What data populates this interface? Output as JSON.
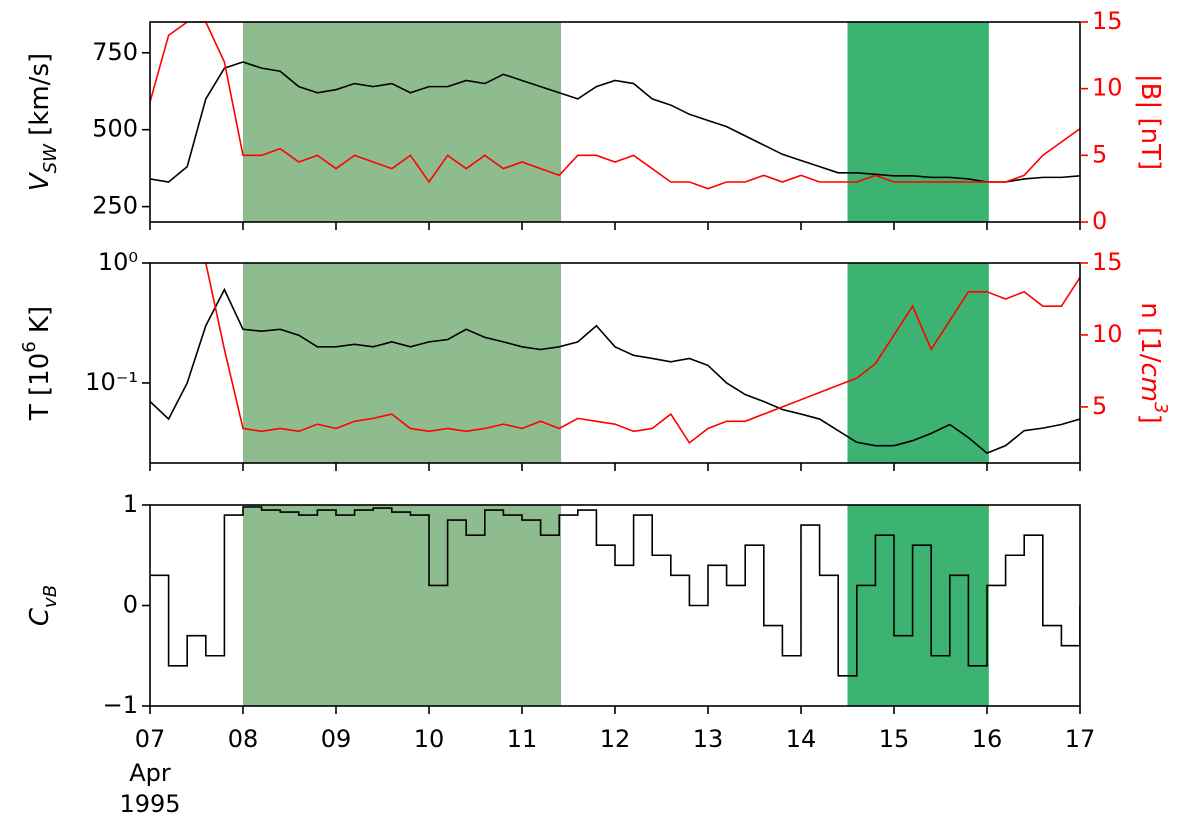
{
  "highlights": [
    {
      "start": 8,
      "end": 11.42,
      "color": "#8fbc8f"
    },
    {
      "start": 14.5,
      "end": 16.02,
      "color": "#3cb371"
    }
  ],
  "chart_data": [
    {
      "type": "line",
      "ylabel": [
        {
          "text": "V",
          "italic": true
        },
        {
          "text": "SW",
          "sub": true,
          "italic": true
        },
        {
          "text": " [km/s]"
        }
      ],
      "y2label": [
        {
          "text": "|B| [nT]"
        }
      ],
      "xlim": [
        7,
        17
      ],
      "ylim": [
        200,
        850
      ],
      "yticks": [
        250,
        500,
        750
      ],
      "y2lim": [
        0,
        15
      ],
      "y2ticks": [
        0,
        5,
        10,
        15
      ],
      "x": [
        7,
        7.2,
        7.4,
        7.6,
        7.8,
        8,
        8.2,
        8.4,
        8.6,
        8.8,
        9,
        9.2,
        9.4,
        9.6,
        9.8,
        10,
        10.2,
        10.4,
        10.6,
        10.8,
        11,
        11.2,
        11.4,
        11.6,
        11.8,
        12,
        12.2,
        12.4,
        12.6,
        12.8,
        13,
        13.2,
        13.4,
        13.6,
        13.8,
        14,
        14.2,
        14.4,
        14.6,
        14.8,
        15,
        15.2,
        15.4,
        15.6,
        15.8,
        16,
        16.2,
        16.4,
        16.6,
        16.8,
        17
      ],
      "series": [
        {
          "name": "V_SW",
          "color": "#000000",
          "values": [
            340,
            330,
            380,
            600,
            700,
            720,
            700,
            690,
            640,
            620,
            630,
            650,
            640,
            650,
            620,
            640,
            640,
            660,
            650,
            680,
            660,
            640,
            620,
            600,
            640,
            660,
            650,
            600,
            580,
            550,
            530,
            510,
            480,
            450,
            420,
            400,
            380,
            360,
            360,
            355,
            350,
            350,
            345,
            345,
            340,
            330,
            330,
            340,
            345,
            345,
            350
          ]
        },
        {
          "name": "|B|",
          "color": "#ff0000",
          "axis": "y2",
          "values": [
            9,
            14,
            15,
            15,
            12,
            5,
            5,
            5.5,
            4.5,
            5,
            4,
            5,
            4.5,
            4,
            5,
            3,
            5,
            4,
            5,
            4,
            4.5,
            4,
            3.5,
            5,
            5,
            4.5,
            5,
            4,
            3,
            3,
            2.5,
            3,
            3,
            3.5,
            3,
            3.5,
            3,
            3,
            3,
            3.5,
            3,
            3,
            3,
            3,
            3,
            3,
            3,
            3.5,
            5,
            6,
            7
          ]
        }
      ]
    },
    {
      "type": "line",
      "ylabel": [
        {
          "text": "T [10"
        },
        {
          "text": "6",
          "sup": true
        },
        {
          "text": " K]"
        }
      ],
      "y2label": [
        {
          "text": "n [1/"
        },
        {
          "text": "cm",
          "italic": true
        },
        {
          "text": "3",
          "sup": true,
          "italic": true
        },
        {
          "text": "]"
        }
      ],
      "xlim": [
        7,
        17
      ],
      "ylim": [
        0.0215,
        1
      ],
      "yscale": "log",
      "yticks": [
        {
          "value": 0.1,
          "label": "10⁻¹"
        },
        {
          "value": 1,
          "label": "10⁰"
        }
      ],
      "y2lim": [
        1.1,
        15
      ],
      "y2ticks": [
        5,
        10,
        15
      ],
      "x": [
        7,
        7.2,
        7.4,
        7.6,
        7.8,
        8,
        8.2,
        8.4,
        8.6,
        8.8,
        9,
        9.2,
        9.4,
        9.6,
        9.8,
        10,
        10.2,
        10.4,
        10.6,
        10.8,
        11,
        11.2,
        11.4,
        11.6,
        11.8,
        12,
        12.2,
        12.4,
        12.6,
        12.8,
        13,
        13.2,
        13.4,
        13.6,
        13.8,
        14,
        14.2,
        14.4,
        14.6,
        14.8,
        15,
        15.2,
        15.4,
        15.6,
        15.8,
        16,
        16.2,
        16.4,
        16.6,
        16.8,
        17
      ],
      "series": [
        {
          "name": "T",
          "color": "#000000",
          "values": [
            0.07,
            0.05,
            0.1,
            0.3,
            0.6,
            0.28,
            0.27,
            0.28,
            0.25,
            0.2,
            0.2,
            0.21,
            0.2,
            0.22,
            0.2,
            0.22,
            0.23,
            0.28,
            0.24,
            0.22,
            0.2,
            0.19,
            0.2,
            0.22,
            0.3,
            0.2,
            0.17,
            0.16,
            0.15,
            0.16,
            0.14,
            0.1,
            0.08,
            0.07,
            0.06,
            0.055,
            0.05,
            0.04,
            0.032,
            0.03,
            0.03,
            0.033,
            0.038,
            0.045,
            0.035,
            0.026,
            0.03,
            0.04,
            0.042,
            0.045,
            0.05
          ]
        },
        {
          "name": "n",
          "color": "#ff0000",
          "axis": "y2",
          "values": [
            null,
            null,
            null,
            15,
            9,
            3.5,
            3.3,
            3.5,
            3.3,
            3.8,
            3.5,
            4,
            4.2,
            4.5,
            3.5,
            3.3,
            3.5,
            3.3,
            3.5,
            3.8,
            3.5,
            4,
            3.5,
            4.2,
            4,
            3.8,
            3.3,
            3.5,
            4.5,
            2.5,
            3.5,
            4,
            4,
            4.5,
            5,
            5.5,
            6,
            6.5,
            7,
            8,
            10,
            12,
            9,
            11,
            13,
            13,
            12.5,
            13,
            12,
            12,
            14
          ]
        }
      ]
    },
    {
      "type": "step",
      "ylabel": [
        {
          "text": "C",
          "italic": true
        },
        {
          "text": "vB",
          "sub": true,
          "italic": true
        }
      ],
      "xlim": [
        7,
        17
      ],
      "ylim": [
        -1,
        1
      ],
      "yticks": [
        {
          "value": -1,
          "label": "−1"
        },
        0,
        1
      ],
      "xticks": [
        {
          "value": 7,
          "label": "07"
        },
        {
          "value": 8,
          "label": "08"
        },
        {
          "value": 9,
          "label": "09"
        },
        10,
        11,
        12,
        13,
        14,
        15,
        16,
        17
      ],
      "x_date_note": [
        "Apr",
        "1995"
      ],
      "x": [
        7,
        7.2,
        7.4,
        7.6,
        7.8,
        8,
        8.2,
        8.4,
        8.6,
        8.8,
        9,
        9.2,
        9.4,
        9.6,
        9.8,
        10,
        10.2,
        10.4,
        10.6,
        10.8,
        11,
        11.2,
        11.4,
        11.6,
        11.8,
        12,
        12.2,
        12.4,
        12.6,
        12.8,
        13,
        13.2,
        13.4,
        13.6,
        13.8,
        14,
        14.2,
        14.4,
        14.6,
        14.8,
        15,
        15.2,
        15.4,
        15.6,
        15.8,
        16,
        16.2,
        16.4,
        16.6,
        16.8,
        17
      ],
      "series": [
        {
          "name": "C_vB",
          "color": "#000000",
          "values": [
            0.3,
            -0.6,
            -0.3,
            -0.5,
            0.9,
            0.98,
            0.95,
            0.93,
            0.9,
            0.95,
            0.9,
            0.95,
            0.97,
            0.93,
            0.9,
            0.2,
            0.85,
            0.7,
            0.95,
            0.9,
            0.85,
            0.7,
            0.9,
            0.95,
            0.6,
            0.4,
            0.9,
            0.5,
            0.3,
            0,
            0.4,
            0.2,
            0.6,
            -0.2,
            -0.5,
            0.8,
            0.3,
            -0.7,
            0.2,
            0.7,
            -0.3,
            0.6,
            -0.5,
            0.3,
            -0.6,
            0.2,
            0.5,
            0.7,
            -0.2,
            -0.4,
            0
          ]
        }
      ]
    }
  ]
}
